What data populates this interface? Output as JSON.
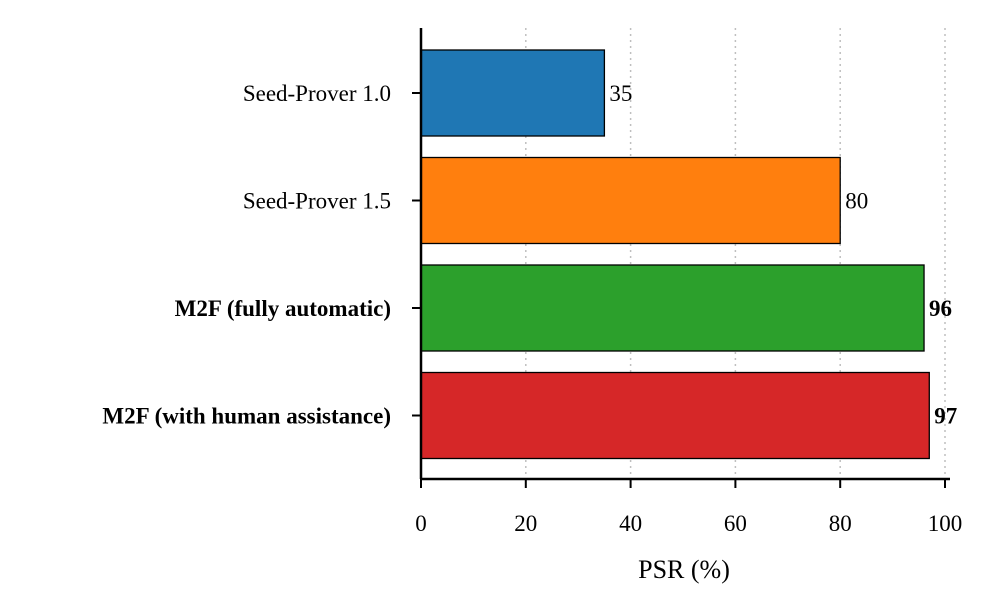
{
  "chart_data": {
    "type": "bar",
    "orientation": "horizontal",
    "xlabel": "PSR (%)",
    "xlim": [
      0,
      100
    ],
    "xticks": [
      "0",
      "20",
      "40",
      "60",
      "80",
      "100"
    ],
    "grid": "vertical dotted",
    "categories": [
      {
        "label": "Seed-Prover 1.0",
        "value": 35,
        "value_label": "35",
        "color": "#1f77b4",
        "bold": false
      },
      {
        "label": "Seed-Prover 1.5",
        "value": 80,
        "value_label": "80",
        "color": "#ff7f0e",
        "bold": false
      },
      {
        "label": "M2F (fully automatic)",
        "value": 96,
        "value_label": "96",
        "color": "#2ca02c",
        "bold": true
      },
      {
        "label": "M2F (with human assistance)",
        "value": 97,
        "value_label": "97",
        "color": "#d62728",
        "bold": true
      }
    ]
  }
}
